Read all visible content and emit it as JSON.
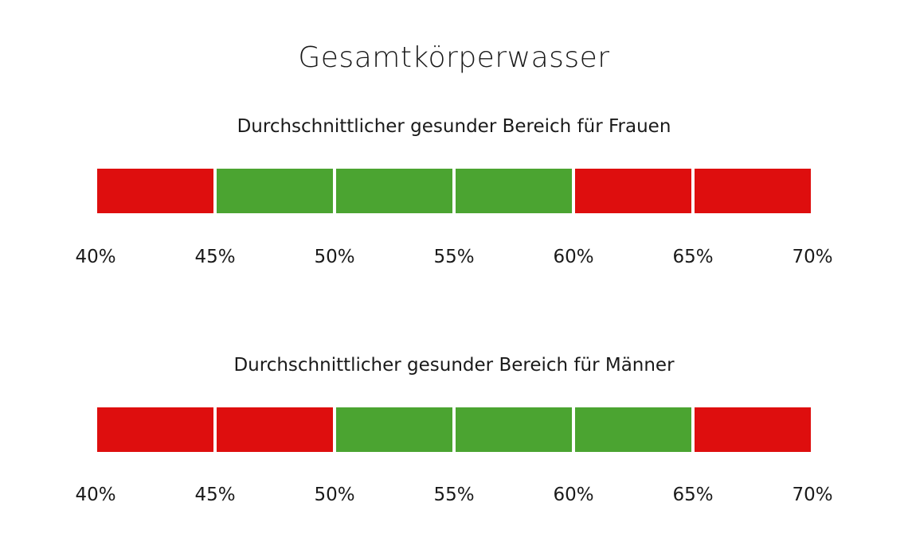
{
  "chart_data": [
    {
      "type": "bar",
      "title": "Gesamtkörperwasser",
      "subtitle": "Durchschnittlicher gesunder Bereich für Frauen",
      "ticks": [
        "40%",
        "45%",
        "50%",
        "55%",
        "60%",
        "65%",
        "70%"
      ],
      "segments": [
        {
          "from": 40,
          "to": 45,
          "status": "outside"
        },
        {
          "from": 45,
          "to": 50,
          "status": "healthy"
        },
        {
          "from": 50,
          "to": 55,
          "status": "healthy"
        },
        {
          "from": 55,
          "to": 60,
          "status": "healthy"
        },
        {
          "from": 60,
          "to": 65,
          "status": "outside"
        },
        {
          "from": 65,
          "to": 70,
          "status": "outside"
        }
      ],
      "healthy_range": [
        45,
        60
      ]
    },
    {
      "type": "bar",
      "subtitle": "Durchschnittlicher gesunder Bereich für Männer",
      "ticks": [
        "40%",
        "45%",
        "50%",
        "55%",
        "60%",
        "65%",
        "70%"
      ],
      "segments": [
        {
          "from": 40,
          "to": 45,
          "status": "outside"
        },
        {
          "from": 45,
          "to": 50,
          "status": "outside"
        },
        {
          "from": 50,
          "to": 55,
          "status": "healthy"
        },
        {
          "from": 55,
          "to": 60,
          "status": "healthy"
        },
        {
          "from": 60,
          "to": 65,
          "status": "healthy"
        },
        {
          "from": 65,
          "to": 70,
          "status": "outside"
        }
      ],
      "healthy_range": [
        50,
        65
      ]
    }
  ],
  "colors": {
    "healthy": "#4ba431",
    "outside": "#de0e0e"
  },
  "xlim": [
    40,
    70
  ]
}
